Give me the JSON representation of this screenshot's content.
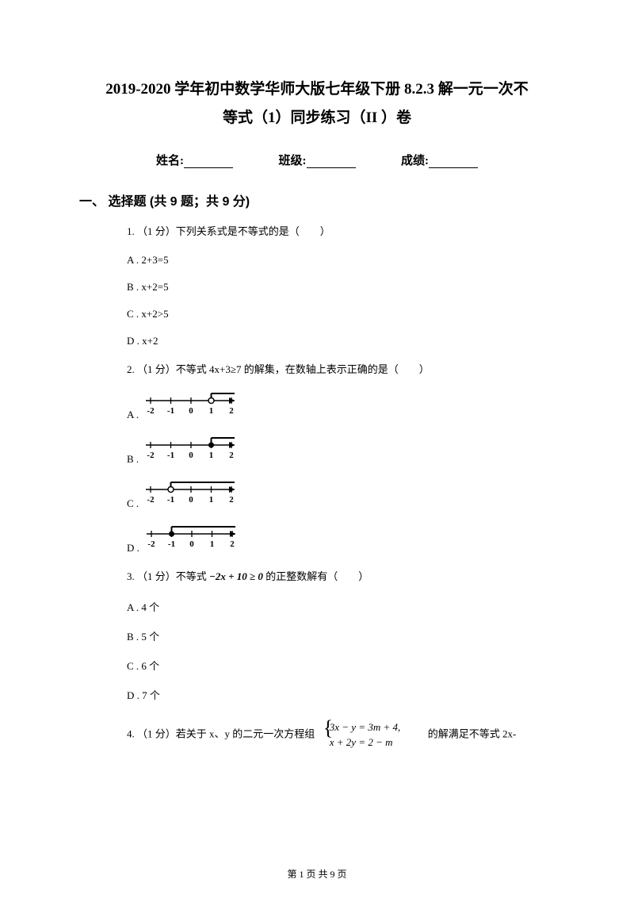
{
  "title_line1": "2019-2020 学年初中数学华师大版七年级下册 8.2.3 解一元一次不",
  "title_line2": "等式（1）同步练习（II ）卷",
  "info": {
    "name_label": "姓名:",
    "class_label": "班级:",
    "score_label": "成绩:"
  },
  "section1": "一、 选择题 (共 9 题；共 9 分)",
  "q1": {
    "text": "1.  （1 分）下列关系式是不等式的是（　　）",
    "a": "A .  2+3=5",
    "b": "B .  x+2=5",
    "c": "C .  x+2>5",
    "d": "D .  x+2"
  },
  "q2": {
    "text": "2.  （1 分）不等式 4x+3≥7 的解集，在数轴上表示正确的是（　　）",
    "a": "A . ",
    "b": "B . ",
    "c": "C . ",
    "d": "D . "
  },
  "numline_labels": [
    "-2",
    "-1",
    "0",
    "1",
    "2"
  ],
  "numline_a": {
    "marker_at": 3,
    "open": true,
    "dir": "right"
  },
  "numline_b": {
    "marker_at": 3,
    "open": false,
    "dir": "right"
  },
  "numline_c": {
    "marker_at": 1,
    "open": true,
    "dir": "right"
  },
  "numline_d": {
    "marker_at": 1,
    "open": false,
    "dir": "right"
  },
  "q3": {
    "text_pre": "3.  （1 分）不等式 ",
    "formula": "−2x + 10 ≥ 0",
    "text_post": " 的正整数解有（　　）",
    "a": "A .  4 个",
    "b": "B .  5 个",
    "c": "C .  6 个",
    "d": "D .  7 个"
  },
  "q4": {
    "text_pre": "4.  （1 分）若关于 x、y 的二元一次方程组 ",
    "sys1": "3x − y = 3m + 4,",
    "sys2": "x + 2y = 2 − m",
    "text_post": " 的解满足不等式 2x-"
  },
  "footer": "第 1 页 共 9 页",
  "colors": {
    "text": "#000000",
    "bg": "#ffffff"
  }
}
